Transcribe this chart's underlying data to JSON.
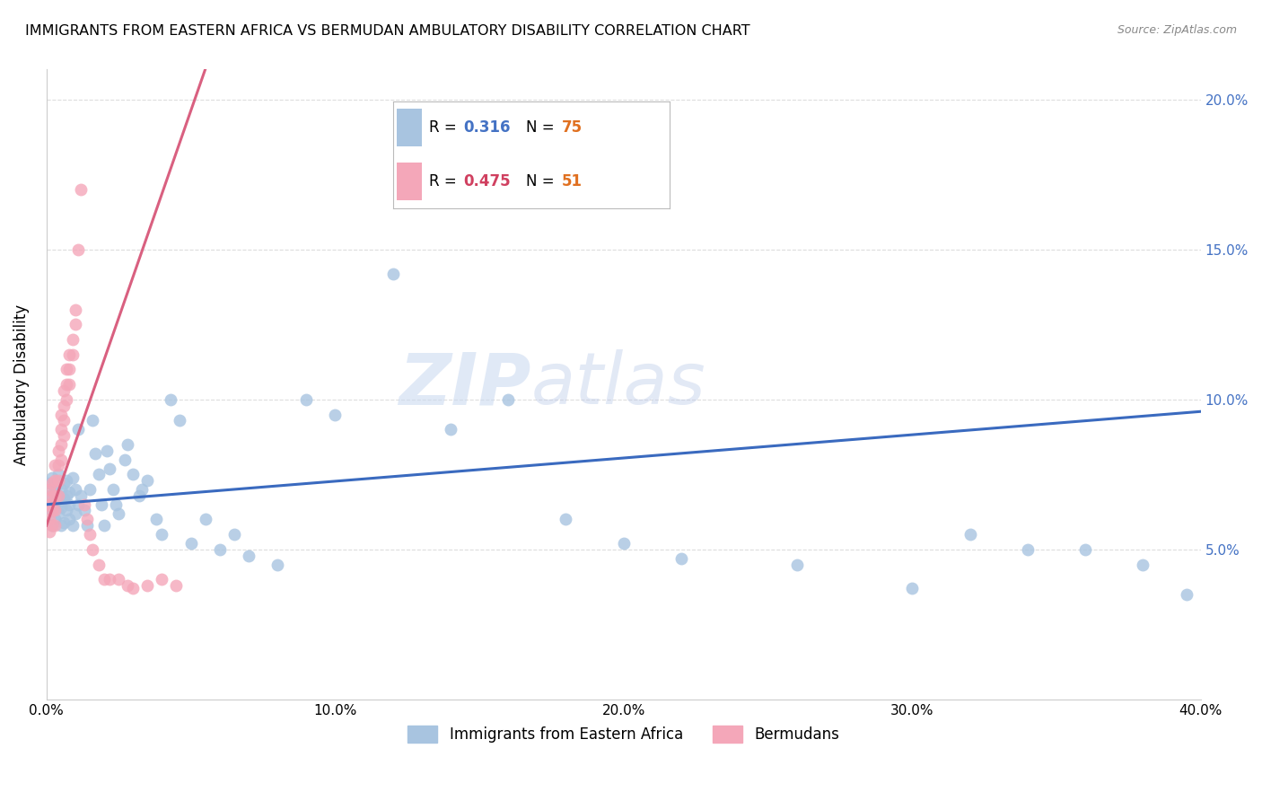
{
  "title": "IMMIGRANTS FROM EASTERN AFRICA VS BERMUDAN AMBULATORY DISABILITY CORRELATION CHART",
  "source": "Source: ZipAtlas.com",
  "ylabel_label": "Ambulatory Disability",
  "xlim": [
    0.0,
    0.4
  ],
  "ylim": [
    0.0,
    0.21
  ],
  "x_ticks": [
    0.0,
    0.1,
    0.2,
    0.3,
    0.4
  ],
  "x_tick_labels": [
    "0.0%",
    "10.0%",
    "20.0%",
    "30.0%",
    "40.0%"
  ],
  "y_ticks": [
    0.05,
    0.1,
    0.15,
    0.2
  ],
  "y_tick_labels": [
    "5.0%",
    "10.0%",
    "15.0%",
    "20.0%"
  ],
  "blue_R": 0.316,
  "blue_N": 75,
  "pink_R": 0.475,
  "pink_N": 51,
  "blue_color": "#a8c4e0",
  "pink_color": "#f4a7b9",
  "blue_line_color": "#3a6abf",
  "pink_line_color": "#d96080",
  "watermark_zip": "ZIP",
  "watermark_atlas": "atlas",
  "legend_blue_label": "Immigrants from Eastern Africa",
  "legend_pink_label": "Bermudans",
  "blue_R_color": "#4472c4",
  "blue_N_color": "#e07020",
  "pink_R_color": "#d04060",
  "pink_N_color": "#e07020",
  "blue_points_x": [
    0.001,
    0.001,
    0.002,
    0.002,
    0.002,
    0.003,
    0.003,
    0.003,
    0.004,
    0.004,
    0.004,
    0.005,
    0.005,
    0.005,
    0.005,
    0.006,
    0.006,
    0.006,
    0.007,
    0.007,
    0.007,
    0.008,
    0.008,
    0.008,
    0.009,
    0.009,
    0.01,
    0.01,
    0.011,
    0.011,
    0.012,
    0.013,
    0.014,
    0.015,
    0.016,
    0.017,
    0.018,
    0.019,
    0.02,
    0.021,
    0.022,
    0.023,
    0.024,
    0.025,
    0.027,
    0.028,
    0.03,
    0.032,
    0.033,
    0.035,
    0.038,
    0.04,
    0.043,
    0.046,
    0.05,
    0.055,
    0.06,
    0.065,
    0.07,
    0.08,
    0.09,
    0.1,
    0.12,
    0.14,
    0.16,
    0.18,
    0.2,
    0.22,
    0.26,
    0.3,
    0.32,
    0.34,
    0.36,
    0.38,
    0.395
  ],
  "blue_points_y": [
    0.068,
    0.072,
    0.063,
    0.058,
    0.074,
    0.065,
    0.06,
    0.07,
    0.062,
    0.068,
    0.075,
    0.058,
    0.064,
    0.07,
    0.066,
    0.059,
    0.072,
    0.067,
    0.063,
    0.068,
    0.073,
    0.06,
    0.065,
    0.069,
    0.058,
    0.074,
    0.062,
    0.07,
    0.065,
    0.09,
    0.068,
    0.063,
    0.058,
    0.07,
    0.093,
    0.082,
    0.075,
    0.065,
    0.058,
    0.083,
    0.077,
    0.07,
    0.065,
    0.062,
    0.08,
    0.085,
    0.075,
    0.068,
    0.07,
    0.073,
    0.06,
    0.055,
    0.1,
    0.093,
    0.052,
    0.06,
    0.05,
    0.055,
    0.048,
    0.045,
    0.1,
    0.095,
    0.142,
    0.09,
    0.1,
    0.06,
    0.052,
    0.047,
    0.045,
    0.037,
    0.055,
    0.05,
    0.05,
    0.045,
    0.035
  ],
  "pink_points_x": [
    0.0005,
    0.001,
    0.001,
    0.001,
    0.001,
    0.002,
    0.002,
    0.002,
    0.002,
    0.003,
    0.003,
    0.003,
    0.003,
    0.003,
    0.004,
    0.004,
    0.004,
    0.004,
    0.005,
    0.005,
    0.005,
    0.005,
    0.006,
    0.006,
    0.006,
    0.006,
    0.007,
    0.007,
    0.007,
    0.008,
    0.008,
    0.008,
    0.009,
    0.009,
    0.01,
    0.01,
    0.011,
    0.012,
    0.013,
    0.014,
    0.015,
    0.016,
    0.018,
    0.02,
    0.022,
    0.025,
    0.028,
    0.03,
    0.035,
    0.04,
    0.045
  ],
  "pink_points_y": [
    0.065,
    0.065,
    0.06,
    0.07,
    0.056,
    0.072,
    0.068,
    0.063,
    0.058,
    0.078,
    0.073,
    0.068,
    0.063,
    0.058,
    0.083,
    0.078,
    0.073,
    0.068,
    0.095,
    0.09,
    0.085,
    0.08,
    0.103,
    0.098,
    0.093,
    0.088,
    0.11,
    0.105,
    0.1,
    0.115,
    0.11,
    0.105,
    0.12,
    0.115,
    0.125,
    0.13,
    0.15,
    0.17,
    0.065,
    0.06,
    0.055,
    0.05,
    0.045,
    0.04,
    0.04,
    0.04,
    0.038,
    0.037,
    0.038,
    0.04,
    0.038
  ],
  "blue_line_x": [
    0.0,
    0.4
  ],
  "blue_line_y": [
    0.065,
    0.096
  ],
  "pink_line_x": [
    0.0,
    0.055
  ],
  "pink_line_y": [
    0.058,
    0.21
  ]
}
